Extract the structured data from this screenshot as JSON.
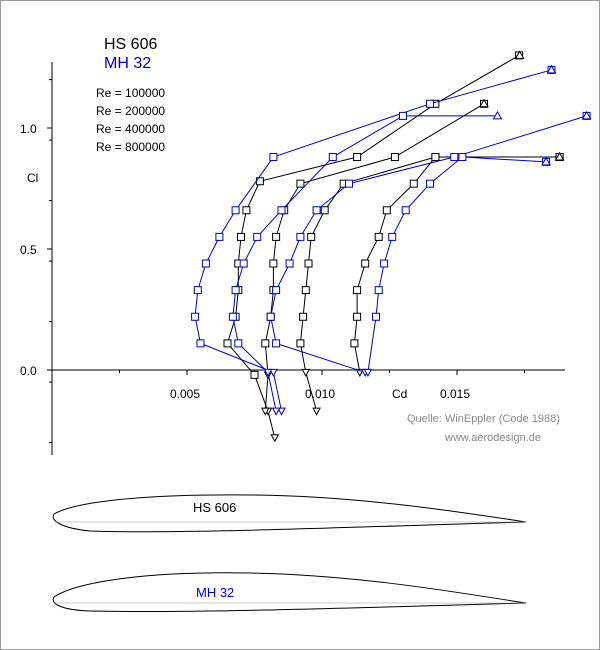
{
  "chart_data": {
    "type": "line",
    "title": "",
    "xlabel": "Cd",
    "ylabel": "Cl",
    "xlim": [
      0.0,
      0.0185
    ],
    "ylim": [
      -0.35,
      1.3
    ],
    "x_ticks": [
      {
        "value": 0.005,
        "label": "0.005"
      },
      {
        "value": 0.01,
        "label": "0.010"
      },
      {
        "value": 0.015,
        "label": "0.015"
      }
    ],
    "y_ticks": [
      {
        "value": 0.0,
        "label": "0.0"
      },
      {
        "value": 0.5,
        "label": "0.5"
      },
      {
        "value": 1.0,
        "label": "1.0"
      }
    ],
    "grid": false,
    "legend": {
      "position": "top-left",
      "airfoils": [
        "HS 606",
        "MH 32"
      ],
      "reynolds_labels": [
        "Re = 100000",
        "Re = 200000",
        "Re = 400000",
        "Re = 800000"
      ]
    },
    "series": [
      {
        "airfoil": "HS 606",
        "color": "#000000",
        "re": 100000,
        "cl_max": {
          "cd": 0.01732,
          "cl": 1.3
        },
        "points": [
          {
            "cd": 0.00825,
            "cl": -0.28
          },
          {
            "cd": 0.008,
            "cl": -0.17
          },
          {
            "cd": 0.0075,
            "cl": -0.02
          },
          {
            "cd": 0.0065,
            "cl": 0.11
          },
          {
            "cd": 0.0068,
            "cl": 0.22
          },
          {
            "cd": 0.0069,
            "cl": 0.33
          },
          {
            "cd": 0.0069,
            "cl": 0.44
          },
          {
            "cd": 0.007,
            "cl": 0.55
          },
          {
            "cd": 0.0072,
            "cl": 0.66
          },
          {
            "cd": 0.0077,
            "cl": 0.78
          },
          {
            "cd": 0.0113,
            "cl": 0.88
          },
          {
            "cd": 0.0142,
            "cl": 1.1
          },
          {
            "cd": 0.0173,
            "cl": 1.3
          }
        ]
      },
      {
        "airfoil": "HS 606",
        "color": "#000000",
        "re": 200000,
        "cl_max": {
          "cd": 0.016,
          "cl": 1.1
        },
        "points": [
          {
            "cd": 0.0079,
            "cl": -0.17
          },
          {
            "cd": 0.008,
            "cl": -0.02
          },
          {
            "cd": 0.0079,
            "cl": 0.11
          },
          {
            "cd": 0.0081,
            "cl": 0.22
          },
          {
            "cd": 0.0082,
            "cl": 0.33
          },
          {
            "cd": 0.0082,
            "cl": 0.44
          },
          {
            "cd": 0.0083,
            "cl": 0.55
          },
          {
            "cd": 0.0086,
            "cl": 0.66
          },
          {
            "cd": 0.0092,
            "cl": 0.77
          },
          {
            "cd": 0.0127,
            "cl": 0.88
          },
          {
            "cd": 0.016,
            "cl": 1.1
          }
        ]
      },
      {
        "airfoil": "HS 606",
        "color": "#000000",
        "re": 400000,
        "cl_max": {
          "cd": 0.0188,
          "cl": 0.88
        },
        "points": [
          {
            "cd": 0.0098,
            "cl": -0.17
          },
          {
            "cd": 0.0094,
            "cl": -0.01
          },
          {
            "cd": 0.0092,
            "cl": 0.11
          },
          {
            "cd": 0.0093,
            "cl": 0.22
          },
          {
            "cd": 0.0094,
            "cl": 0.33
          },
          {
            "cd": 0.0095,
            "cl": 0.44
          },
          {
            "cd": 0.0096,
            "cl": 0.55
          },
          {
            "cd": 0.0101,
            "cl": 0.66
          },
          {
            "cd": 0.0108,
            "cl": 0.77
          },
          {
            "cd": 0.0142,
            "cl": 0.88
          },
          {
            "cd": 0.0188,
            "cl": 0.88
          }
        ]
      },
      {
        "airfoil": "HS 606",
        "color": "#000000",
        "re": 800000,
        "cl_max": {
          "cd": 0.0188,
          "cl": 0.88
        },
        "points": [
          {
            "cd": 0.0114,
            "cl": -0.01
          },
          {
            "cd": 0.0112,
            "cl": 0.11
          },
          {
            "cd": 0.0113,
            "cl": 0.22
          },
          {
            "cd": 0.0113,
            "cl": 0.33
          },
          {
            "cd": 0.0116,
            "cl": 0.44
          },
          {
            "cd": 0.0121,
            "cl": 0.55
          },
          {
            "cd": 0.0124,
            "cl": 0.66
          },
          {
            "cd": 0.0134,
            "cl": 0.77
          },
          {
            "cd": 0.0142,
            "cl": 0.88
          },
          {
            "cd": 0.0188,
            "cl": 0.88
          }
        ]
      },
      {
        "airfoil": "MH 32",
        "color": "#0000cc",
        "re": 100000,
        "cl_max": {
          "cd": 0.0185,
          "cl": 1.24
        },
        "points": [
          {
            "cd": 0.0085,
            "cl": -0.17
          },
          {
            "cd": 0.0082,
            "cl": -0.01
          },
          {
            "cd": 0.0055,
            "cl": 0.11
          },
          {
            "cd": 0.0053,
            "cl": 0.22
          },
          {
            "cd": 0.0054,
            "cl": 0.33
          },
          {
            "cd": 0.0057,
            "cl": 0.44
          },
          {
            "cd": 0.0062,
            "cl": 0.55
          },
          {
            "cd": 0.0068,
            "cl": 0.66
          },
          {
            "cd": 0.0082,
            "cl": 0.88
          },
          {
            "cd": 0.014,
            "cl": 1.1
          },
          {
            "cd": 0.0185,
            "cl": 1.24
          }
        ]
      },
      {
        "airfoil": "MH 32",
        "color": "#0000cc",
        "re": 200000,
        "cl_max": {
          "cd": 0.0165,
          "cl": 1.05
        },
        "points": [
          {
            "cd": 0.0083,
            "cl": -0.17
          },
          {
            "cd": 0.008,
            "cl": -0.01
          },
          {
            "cd": 0.0069,
            "cl": 0.11
          },
          {
            "cd": 0.0067,
            "cl": 0.22
          },
          {
            "cd": 0.0068,
            "cl": 0.33
          },
          {
            "cd": 0.0071,
            "cl": 0.44
          },
          {
            "cd": 0.0076,
            "cl": 0.55
          },
          {
            "cd": 0.0085,
            "cl": 0.66
          },
          {
            "cd": 0.0104,
            "cl": 0.88
          },
          {
            "cd": 0.013,
            "cl": 1.05
          }
        ]
      },
      {
        "airfoil": "MH 32",
        "color": "#0000cc",
        "re": 400000,
        "cl_max": {
          "cd": 0.0198,
          "cl": 1.05
        },
        "points": [
          {
            "cd": 0.0116,
            "cl": -0.01
          },
          {
            "cd": 0.0083,
            "cl": 0.11
          },
          {
            "cd": 0.0081,
            "cl": 0.22
          },
          {
            "cd": 0.0083,
            "cl": 0.33
          },
          {
            "cd": 0.0088,
            "cl": 0.44
          },
          {
            "cd": 0.0092,
            "cl": 0.55
          },
          {
            "cd": 0.0098,
            "cl": 0.66
          },
          {
            "cd": 0.011,
            "cl": 0.77
          },
          {
            "cd": 0.0149,
            "cl": 0.88
          },
          {
            "cd": 0.0198,
            "cl": 1.05
          }
        ]
      },
      {
        "airfoil": "MH 32",
        "color": "#0000cc",
        "re": 800000,
        "cl_max": {
          "cd": 0.0183,
          "cl": 0.86
        },
        "points": [
          {
            "cd": 0.0117,
            "cl": -0.01
          },
          {
            "cd": 0.012,
            "cl": 0.22
          },
          {
            "cd": 0.0121,
            "cl": 0.33
          },
          {
            "cd": 0.0123,
            "cl": 0.44
          },
          {
            "cd": 0.0126,
            "cl": 0.55
          },
          {
            "cd": 0.0131,
            "cl": 0.66
          },
          {
            "cd": 0.014,
            "cl": 0.77
          },
          {
            "cd": 0.0152,
            "cl": 0.88
          },
          {
            "cd": 0.0183,
            "cl": 0.86
          }
        ]
      }
    ]
  },
  "legend_text": {
    "hs606": "HS 606",
    "mh32": "MH 32",
    "re1": "Re = 100000",
    "re2": "Re = 200000",
    "re3": "Re = 400000",
    "re4": "Re = 800000"
  },
  "axis_text": {
    "cl_label": "Cl",
    "cd_label": "Cd",
    "y_tick_0": "0.0",
    "y_tick_05": "0.5",
    "y_tick_1": "1.0",
    "x_tick_005": "0.005",
    "x_tick_010": "0.010",
    "x_tick_015": "0.015"
  },
  "credits": {
    "source": "Quelle: WinEppler (Code 1988)",
    "website": "www.aerodesign.de"
  },
  "airfoils": [
    {
      "name": "HS 606",
      "label_color": "#000000"
    },
    {
      "name": "MH 32",
      "label_color": "#0000cc"
    }
  ],
  "colors": {
    "hs606": "#000000",
    "mh32": "#0000cc",
    "credit_gray": "#8a8a8a"
  }
}
